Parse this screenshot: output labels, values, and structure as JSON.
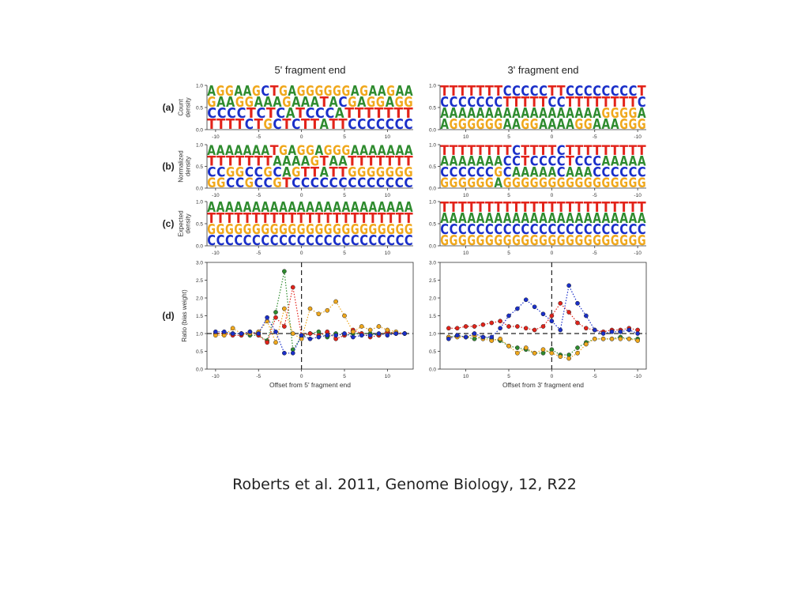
{
  "slide": {
    "caption": "Roberts et al. 2011, Genome Biology, 12, R22"
  },
  "figure": {
    "columns": [
      {
        "title": "5' fragment end",
        "xlabel": "Offset from 5' fragment end",
        "xticks": [
          "-10",
          "-5",
          "0",
          "5",
          "10"
        ]
      },
      {
        "title": "3' fragment end",
        "xlabel": "Offset from 3' fragment end",
        "xticks": [
          "10",
          "5",
          "0",
          "-5",
          "-10"
        ]
      }
    ],
    "rows": [
      {
        "label": "(a)",
        "ylabel": [
          "Count",
          "density"
        ],
        "yticks": [
          "1.0",
          "0.5",
          "0.0"
        ]
      },
      {
        "label": "(b)",
        "ylabel": [
          "Normalized",
          "density"
        ],
        "yticks": [
          "1.0",
          "0.5",
          "0.0"
        ]
      },
      {
        "label": "(c)",
        "ylabel": [
          "Expected",
          "density"
        ],
        "yticks": [
          "1.0",
          "0.5",
          "0.0"
        ]
      },
      {
        "label": "(d)",
        "ylabel": [
          "Ratio (bias weight)"
        ],
        "yticks": [
          "3.0",
          "2.5",
          "2.0",
          "1.5",
          "1.0",
          "0.5",
          "0.0"
        ]
      }
    ],
    "base_colors": {
      "A": "#2e8b2e",
      "C": "#1a2fc9",
      "G": "#f0a81c",
      "T": "#e2231a"
    },
    "logos": {
      "5p": [
        [
          "AGGAAGCTGAGGGGGGAGAAGAA",
          "GAAGGAAAGAAATACGAGGAGG",
          "CCCCTCTCATCCCATTTTTTT",
          "TTTTCTGCTCTTATTCCCCCCC"
        ],
        [
          "AAAAAAATGAGGAGGGAAAAAAA",
          "TTTTTTTAAAAGTAATTTTTTT",
          "CCGGCCGCAGTTATTGGGGGGG",
          "GGCCGCCGTCCCCCCCCCCCCC"
        ],
        [
          "AAAAAAAAAAAAAAAAAAAAAAA",
          "TTTTTTTTTTTTTTTTTTTTTTT",
          "GGGGGGGGGGGGGGGGGGGGGGG",
          "CCCCCCCCCCCCCCCCCCCCCCC"
        ]
      ],
      "3p": [
        [
          "TTTTTTTCCCCCTTCCCCCCCCT",
          "CCCCCCCTTTTTCCTTTTTTTTC",
          "AAAAAAAAAAAAAAAAAAGGGGA",
          "AGGGGGGAAGGAAAAGGAAAGGG"
        ],
        [
          "TTTTTTTTCTTTTCTTTTTTTTT",
          "AAAAAAACCTCCCCTCCCAAAAA",
          "CCCCCCGCAAAAACAAACCCCCC",
          "GGGGGGAGGGGGGGGGGGGGGGG"
        ],
        [
          "TTTTTTTTTTTTTTTTTTTTTTT",
          "AAAAAAAAAAAAAAAAAAAAAAA",
          "CCCCCCCCCCCCCCCCCCCCCCC",
          "GGGGGGGGGGGGGGGGGGGGGGG"
        ]
      ]
    },
    "ratio_series": {
      "xlim": [
        -11,
        13
      ],
      "ylim": [
        0,
        3
      ],
      "5p": {
        "x": [
          -10,
          -9,
          -8,
          -7,
          -6,
          -5,
          -4,
          -3,
          -2,
          -1,
          0,
          1,
          2,
          3,
          4,
          5,
          6,
          7,
          8,
          9,
          10,
          11,
          12
        ],
        "A": [
          1.0,
          1.0,
          1.0,
          1.0,
          0.95,
          0.95,
          0.8,
          1.6,
          2.75,
          0.55,
          0.9,
          1.0,
          1.05,
          0.9,
          1.0,
          0.95,
          1.0,
          1.0,
          1.0,
          0.95,
          1.05,
          1.0,
          1.0
        ],
        "C": [
          1.05,
          1.05,
          1.0,
          1.0,
          1.05,
          1.0,
          1.45,
          1.05,
          0.45,
          0.45,
          0.95,
          0.85,
          0.9,
          0.95,
          0.95,
          1.0,
          0.9,
          0.95,
          0.95,
          1.0,
          0.95,
          1.0,
          1.0
        ],
        "G": [
          0.95,
          0.95,
          1.15,
          1.0,
          1.0,
          1.05,
          1.35,
          0.75,
          1.7,
          1.0,
          0.85,
          1.7,
          1.55,
          1.65,
          1.9,
          1.5,
          1.05,
          1.2,
          1.1,
          1.2,
          1.1,
          1.05,
          1.0
        ],
        "T": [
          1.0,
          1.0,
          0.95,
          0.95,
          1.05,
          0.95,
          0.75,
          1.45,
          1.2,
          2.3,
          0.95,
          1.0,
          0.95,
          1.05,
          0.85,
          0.95,
          1.1,
          1.0,
          0.9,
          0.95,
          1.05,
          1.0,
          1.0
        ]
      },
      "3p": {
        "x": [
          12,
          11,
          10,
          9,
          8,
          7,
          6,
          5,
          4,
          3,
          2,
          1,
          0,
          -1,
          -2,
          -3,
          -4,
          -5,
          -6,
          -7,
          -8,
          -9,
          -10
        ],
        "A": [
          0.9,
          0.95,
          0.9,
          0.85,
          0.9,
          0.85,
          0.8,
          0.65,
          0.6,
          0.55,
          0.45,
          0.45,
          0.55,
          0.4,
          0.4,
          0.6,
          0.75,
          0.85,
          0.85,
          0.85,
          0.9,
          0.85,
          0.85
        ],
        "C": [
          0.85,
          0.95,
          0.9,
          1.0,
          0.9,
          0.9,
          1.15,
          1.5,
          1.7,
          1.95,
          1.75,
          1.55,
          1.35,
          1.1,
          2.35,
          1.85,
          1.5,
          1.1,
          1.0,
          1.05,
          1.05,
          1.1,
          1.0
        ],
        "G": [
          0.9,
          0.9,
          0.9,
          0.95,
          0.85,
          0.8,
          0.85,
          0.65,
          0.45,
          0.6,
          0.45,
          0.55,
          0.45,
          0.35,
          0.3,
          0.45,
          0.7,
          0.85,
          0.85,
          0.85,
          0.85,
          0.85,
          0.8
        ],
        "T": [
          1.15,
          1.15,
          1.2,
          1.2,
          1.25,
          1.3,
          1.35,
          1.2,
          1.2,
          1.15,
          1.1,
          1.2,
          1.5,
          1.85,
          1.6,
          1.3,
          1.15,
          1.1,
          1.05,
          1.1,
          1.1,
          1.15,
          1.1
        ]
      }
    }
  }
}
